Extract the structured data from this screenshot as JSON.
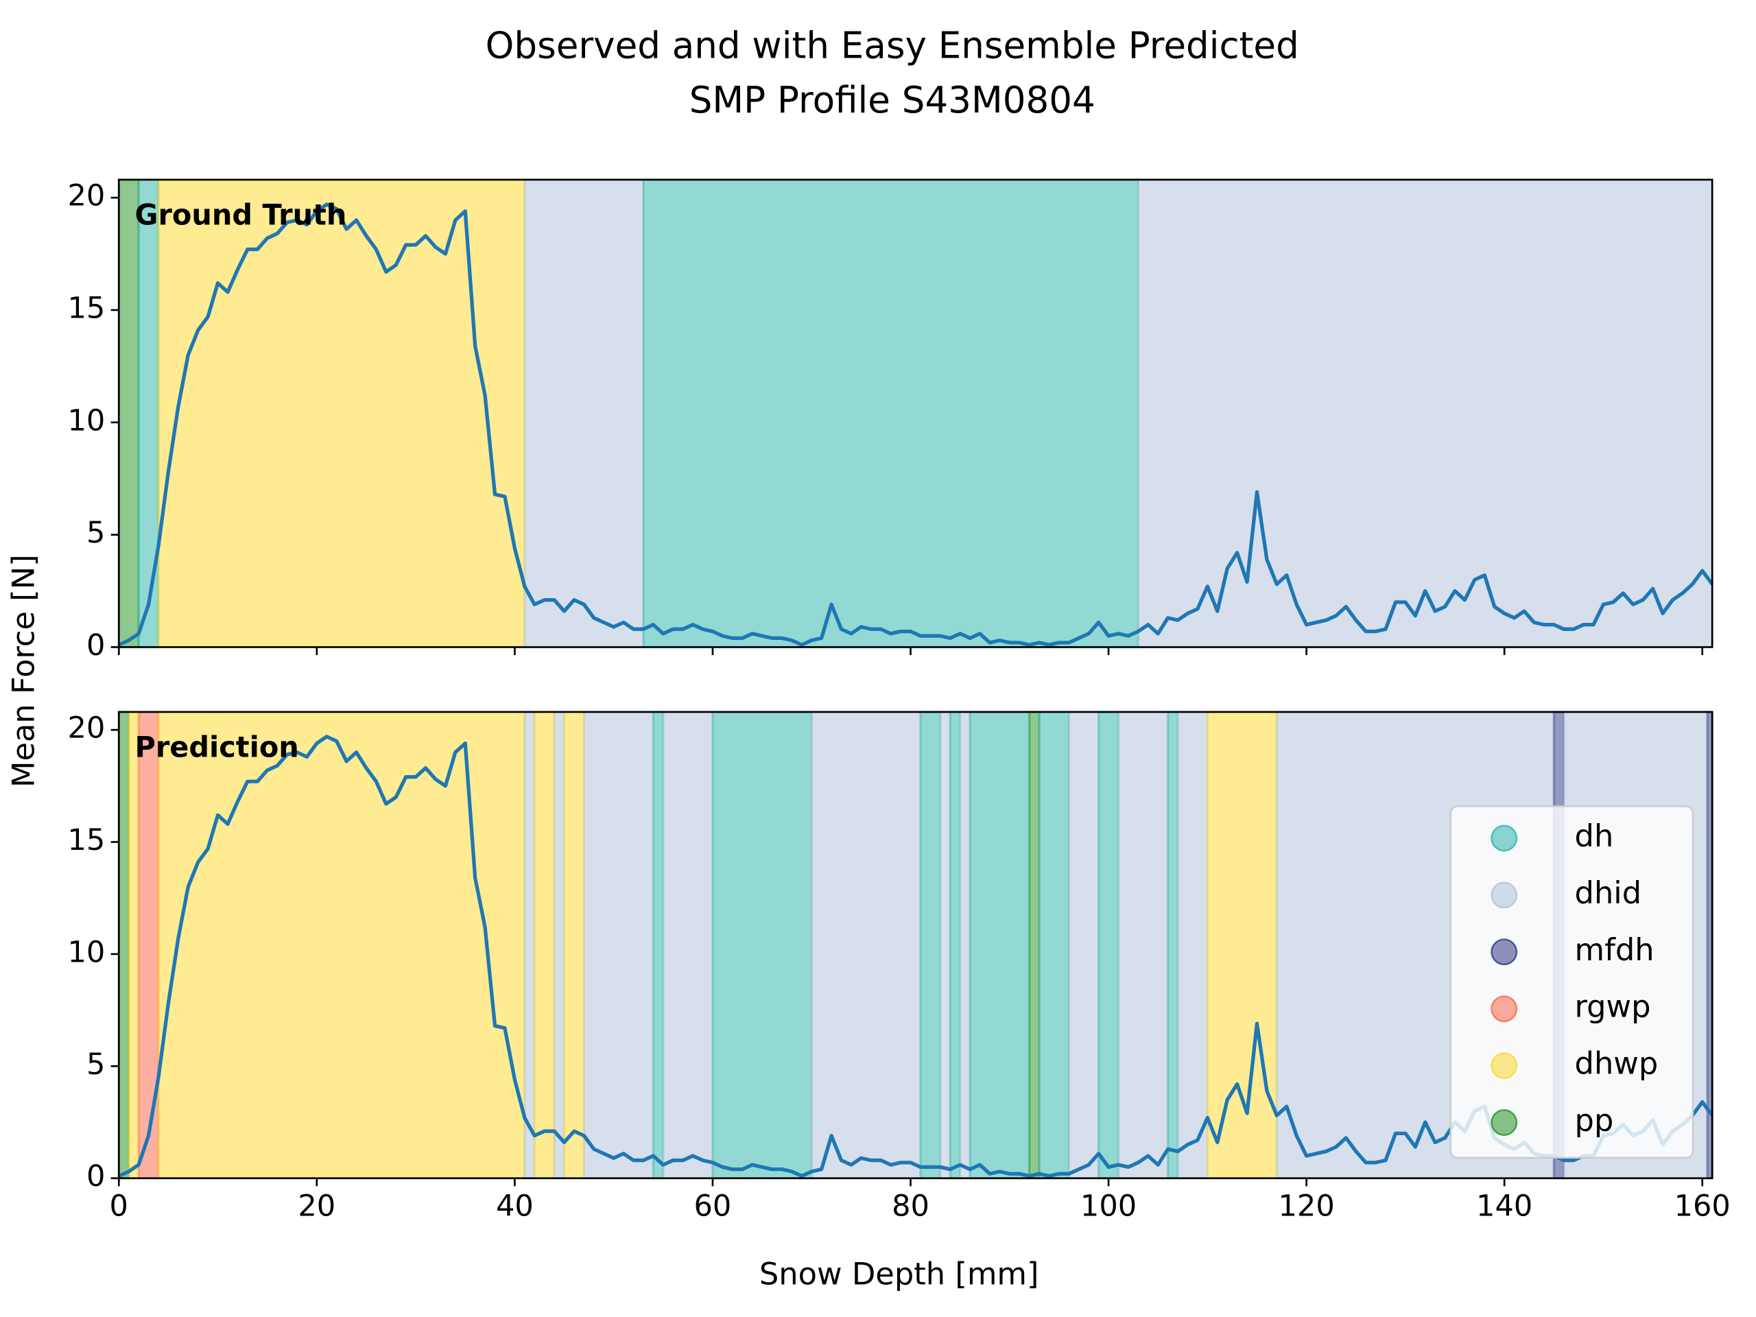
{
  "chart_data": {
    "type": "line",
    "title": [
      "Observed and with Easy Ensemble Predicted",
      "SMP Profile S43M0804"
    ],
    "xlabel": "Snow Depth [mm]",
    "ylabel": "Mean Force [N]",
    "color": "#1f77b4",
    "x": [
      0,
      1,
      2,
      3,
      4,
      5,
      6,
      7,
      8,
      9,
      10,
      11,
      12,
      13,
      14,
      15,
      16,
      17,
      18,
      19,
      20,
      21,
      22,
      23,
      24,
      25,
      26,
      27,
      28,
      29,
      30,
      31,
      32,
      33,
      34,
      35,
      36,
      37,
      38,
      39,
      40,
      41,
      42,
      43,
      44,
      45,
      46,
      47,
      48,
      49,
      50,
      51,
      52,
      53,
      54,
      55,
      56,
      57,
      58,
      59,
      60,
      61,
      62,
      63,
      64,
      65,
      66,
      67,
      68,
      69,
      70,
      71,
      72,
      73,
      74,
      75,
      76,
      77,
      78,
      79,
      80,
      81,
      82,
      83,
      84,
      85,
      86,
      87,
      88,
      89,
      90,
      91,
      92,
      93,
      94,
      95,
      96,
      97,
      98,
      99,
      100,
      101,
      102,
      103,
      104,
      105,
      106,
      107,
      108,
      109,
      110,
      111,
      112,
      113,
      114,
      115,
      116,
      117,
      118,
      119,
      120,
      121,
      122,
      123,
      124,
      125,
      126,
      127,
      128,
      129,
      130,
      131,
      132,
      133,
      134,
      135,
      136,
      137,
      138,
      139,
      140,
      141,
      142,
      143,
      144,
      145,
      146,
      147,
      148,
      149,
      150,
      151,
      152,
      153,
      154,
      155,
      156,
      157,
      158,
      159,
      160,
      161
    ],
    "values": [
      0.1,
      0.3,
      0.6,
      1.9,
      4.5,
      7.8,
      10.7,
      13.0,
      14.1,
      14.7,
      16.2,
      15.8,
      16.8,
      17.7,
      17.7,
      18.2,
      18.4,
      18.9,
      19.0,
      18.8,
      19.4,
      19.7,
      19.5,
      18.6,
      19.0,
      18.3,
      17.7,
      16.7,
      17.0,
      17.9,
      17.9,
      18.3,
      17.8,
      17.5,
      19.0,
      19.4,
      13.4,
      11.2,
      6.8,
      6.7,
      4.4,
      2.7,
      1.9,
      2.1,
      2.1,
      1.6,
      2.1,
      1.9,
      1.3,
      1.1,
      0.9,
      1.1,
      0.8,
      0.8,
      1.0,
      0.6,
      0.8,
      0.8,
      1.0,
      0.8,
      0.7,
      0.5,
      0.4,
      0.4,
      0.6,
      0.5,
      0.4,
      0.4,
      0.3,
      0.1,
      0.3,
      0.4,
      1.9,
      0.8,
      0.6,
      0.9,
      0.8,
      0.8,
      0.6,
      0.7,
      0.7,
      0.5,
      0.5,
      0.5,
      0.4,
      0.6,
      0.4,
      0.6,
      0.2,
      0.3,
      0.2,
      0.2,
      0.1,
      0.2,
      0.1,
      0.2,
      0.2,
      0.4,
      0.6,
      1.1,
      0.5,
      0.6,
      0.5,
      0.7,
      1.0,
      0.6,
      1.3,
      1.2,
      1.5,
      1.7,
      2.7,
      1.6,
      3.5,
      4.2,
      2.9,
      6.9,
      3.9,
      2.8,
      3.2,
      1.9,
      1.0,
      1.1,
      1.2,
      1.4,
      1.8,
      1.2,
      0.7,
      0.7,
      0.8,
      2.0,
      2.0,
      1.4,
      2.5,
      1.6,
      1.8,
      2.5,
      2.1,
      3.0,
      3.2,
      1.8,
      1.5,
      1.3,
      1.6,
      1.1,
      1.0,
      1.0,
      0.8,
      0.8,
      1.0,
      1.0,
      1.9,
      2.0,
      2.4,
      1.9,
      2.1,
      2.6,
      1.5,
      2.1,
      2.4,
      2.8,
      3.4,
      2.8
    ],
    "xlim": [
      0,
      161
    ],
    "xticks": [
      0,
      20,
      40,
      60,
      80,
      100,
      120,
      140,
      160
    ],
    "ylim": [
      0,
      20.8
    ],
    "yticks": [
      0,
      5,
      10,
      15,
      20
    ],
    "classes": [
      {
        "name": "dh",
        "color": "#1cb0a3"
      },
      {
        "name": "dhid",
        "color": "#a9bdd6"
      },
      {
        "name": "mfdh",
        "color": "#202a7a"
      },
      {
        "name": "rgwp",
        "color": "#fb5a3c"
      },
      {
        "name": "dhwp",
        "color": "#fdd51b"
      },
      {
        "name": "pp",
        "color": "#158c15"
      }
    ],
    "panels": [
      {
        "label": "Ground Truth",
        "segments": [
          {
            "class": "pp",
            "start": 0,
            "end": 2
          },
          {
            "class": "dh",
            "start": 2,
            "end": 4
          },
          {
            "class": "dhwp",
            "start": 4,
            "end": 41
          },
          {
            "class": "dhid",
            "start": 41,
            "end": 53
          },
          {
            "class": "dh",
            "start": 53,
            "end": 103
          },
          {
            "class": "dhid",
            "start": 103,
            "end": 161
          }
        ]
      },
      {
        "label": "Prediction",
        "segments": [
          {
            "class": "pp",
            "start": 0,
            "end": 1
          },
          {
            "class": "dhwp",
            "start": 1,
            "end": 2
          },
          {
            "class": "rgwp",
            "start": 2,
            "end": 4
          },
          {
            "class": "dhwp",
            "start": 4,
            "end": 41
          },
          {
            "class": "dhid",
            "start": 41,
            "end": 42
          },
          {
            "class": "dhwp",
            "start": 42,
            "end": 44
          },
          {
            "class": "dhid",
            "start": 44,
            "end": 45
          },
          {
            "class": "dhwp",
            "start": 45,
            "end": 47
          },
          {
            "class": "dhid",
            "start": 47,
            "end": 54
          },
          {
            "class": "dh",
            "start": 54,
            "end": 55
          },
          {
            "class": "dhid",
            "start": 55,
            "end": 60
          },
          {
            "class": "dh",
            "start": 60,
            "end": 70
          },
          {
            "class": "dhid",
            "start": 70,
            "end": 81
          },
          {
            "class": "dh",
            "start": 81,
            "end": 83
          },
          {
            "class": "dhid",
            "start": 83,
            "end": 84
          },
          {
            "class": "dh",
            "start": 84,
            "end": 85
          },
          {
            "class": "dhid",
            "start": 85,
            "end": 86
          },
          {
            "class": "dh",
            "start": 86,
            "end": 92
          },
          {
            "class": "pp",
            "start": 92,
            "end": 93
          },
          {
            "class": "dh",
            "start": 93,
            "end": 96
          },
          {
            "class": "dhid",
            "start": 96,
            "end": 99
          },
          {
            "class": "dh",
            "start": 99,
            "end": 101
          },
          {
            "class": "dhid",
            "start": 101,
            "end": 106
          },
          {
            "class": "dh",
            "start": 106,
            "end": 107
          },
          {
            "class": "dhid",
            "start": 107,
            "end": 110
          },
          {
            "class": "dhwp",
            "start": 110,
            "end": 117
          },
          {
            "class": "dhid",
            "start": 117,
            "end": 145
          },
          {
            "class": "mfdh",
            "start": 145,
            "end": 146
          },
          {
            "class": "dhid",
            "start": 146,
            "end": 160.5
          },
          {
            "class": "mfdh",
            "start": 160.5,
            "end": 161
          }
        ]
      }
    ]
  }
}
